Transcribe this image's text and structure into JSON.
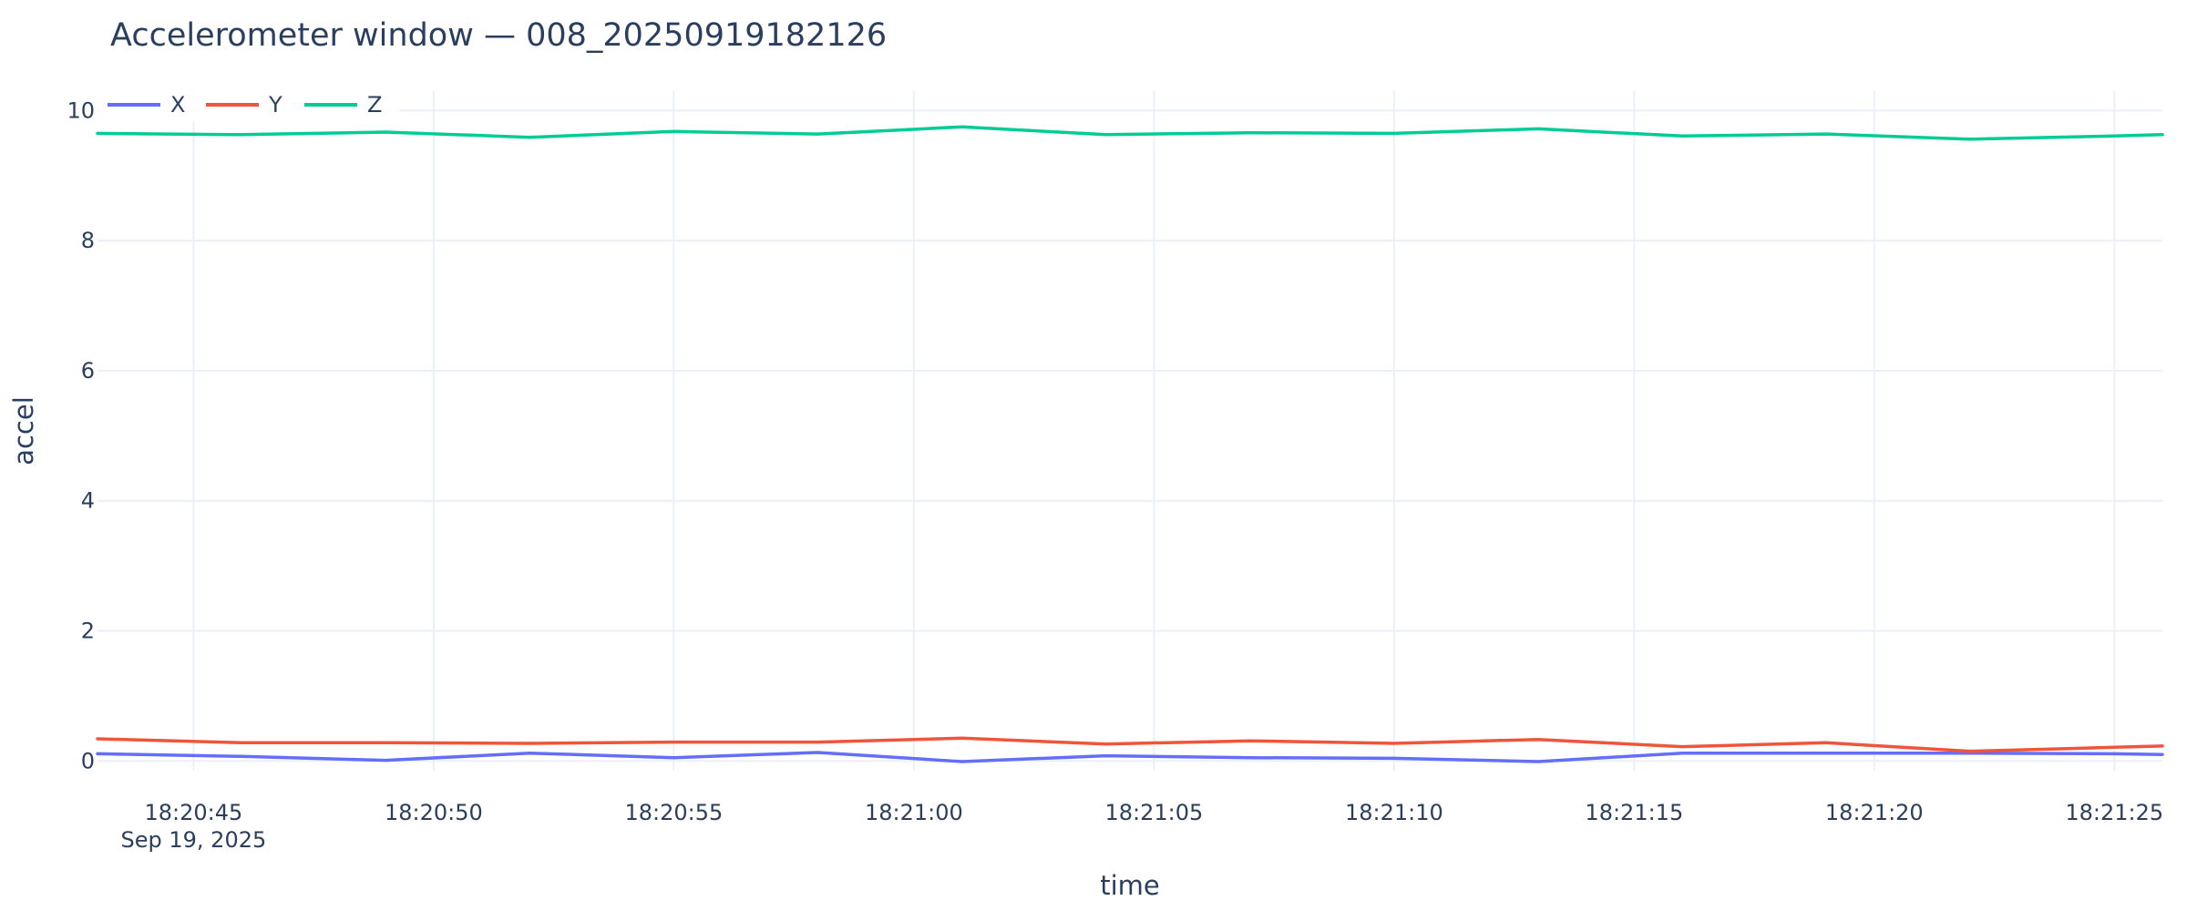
{
  "chart_data": {
    "type": "line",
    "title": "Accelerometer window — 008_20250919182126",
    "xlabel": "time",
    "ylabel": "accel",
    "x_axis": {
      "type": "date",
      "range": [
        "2025-09-19T18:20:43",
        "2025-09-19T18:21:26"
      ],
      "tick_values": [
        "2025-09-19T18:20:45",
        "2025-09-19T18:20:50",
        "2025-09-19T18:20:55",
        "2025-09-19T18:21:00",
        "2025-09-19T18:21:05",
        "2025-09-19T18:21:10",
        "2025-09-19T18:21:15",
        "2025-09-19T18:21:20",
        "2025-09-19T18:21:25"
      ],
      "tick_labels": [
        "18:20:45",
        "18:20:50",
        "18:20:55",
        "18:21:00",
        "18:21:05",
        "18:21:10",
        "18:21:15",
        "18:21:20",
        "18:21:25"
      ],
      "date_label": "Sep 19, 2025"
    },
    "y_axis": {
      "range": [
        -0.15,
        10.3
      ],
      "tick_values": [
        0,
        2,
        4,
        6,
        8,
        10
      ],
      "tick_labels": [
        "0",
        "2",
        "4",
        "6",
        "8",
        "10"
      ]
    },
    "grid": true,
    "legend": {
      "placement": "top-left",
      "orientation": "horizontal"
    },
    "x": [
      "2025-09-19T18:20:43",
      "2025-09-19T18:20:46",
      "2025-09-19T18:20:49",
      "2025-09-19T18:20:52",
      "2025-09-19T18:20:55",
      "2025-09-19T18:20:58",
      "2025-09-19T18:21:01",
      "2025-09-19T18:21:04",
      "2025-09-19T18:21:07",
      "2025-09-19T18:21:10",
      "2025-09-19T18:21:13",
      "2025-09-19T18:21:16",
      "2025-09-19T18:21:19",
      "2025-09-19T18:21:22",
      "2025-09-19T18:21:25",
      "2025-09-19T18:21:26"
    ],
    "series": [
      {
        "name": "X",
        "color": "#636efa",
        "values": [
          0.11,
          0.07,
          0.01,
          0.12,
          0.05,
          0.13,
          -0.01,
          0.08,
          0.05,
          0.04,
          -0.01,
          0.12,
          0.12,
          0.12,
          0.11,
          0.1
        ]
      },
      {
        "name": "Y",
        "color": "#ef553b",
        "values": [
          0.34,
          0.28,
          0.28,
          0.27,
          0.29,
          0.29,
          0.35,
          0.26,
          0.31,
          0.27,
          0.33,
          0.22,
          0.28,
          0.15,
          0.21,
          0.23
        ]
      },
      {
        "name": "Z",
        "color": "#00cc96",
        "values": [
          9.65,
          9.63,
          9.67,
          9.59,
          9.68,
          9.64,
          9.75,
          9.63,
          9.66,
          9.65,
          9.72,
          9.61,
          9.64,
          9.56,
          9.61,
          9.63
        ]
      }
    ]
  }
}
